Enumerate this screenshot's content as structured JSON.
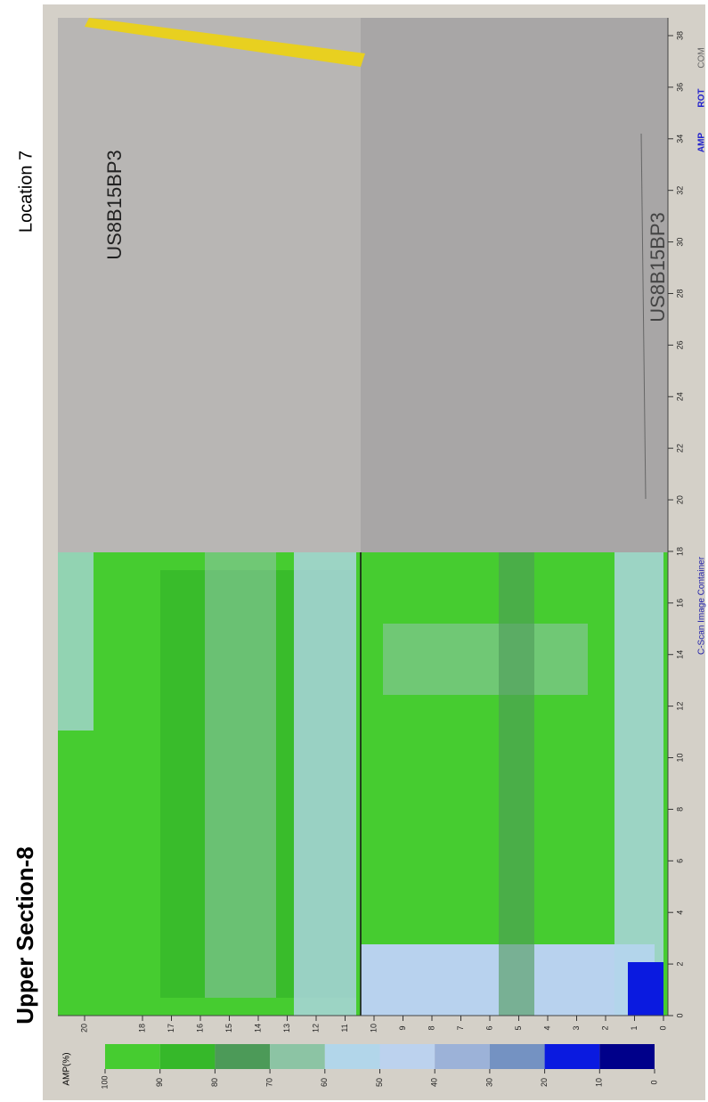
{
  "title": "Upper Section-8",
  "location": "Location 7",
  "panel": {
    "label": "C-Scan Image Container",
    "buttons": [
      "AMP",
      "ROT",
      "COM"
    ]
  },
  "photo_labels": [
    "US8B15BP3",
    "US8B15BP3"
  ],
  "scan_axis": {
    "ticks": [
      0,
      2,
      4,
      6,
      8,
      10,
      12,
      14,
      16,
      18,
      20,
      22,
      24,
      26,
      28,
      30,
      32,
      34,
      36,
      38
    ]
  },
  "index_axis": {
    "ticks": [
      0,
      1,
      2,
      3,
      4,
      5,
      6,
      7,
      8,
      9,
      10,
      11,
      12,
      13,
      14,
      15,
      16,
      17,
      18,
      20
    ]
  },
  "colorbar": {
    "label": "AMP(%)",
    "ticks": [
      100,
      90,
      80,
      70,
      60,
      50,
      40,
      30,
      20,
      10,
      0
    ],
    "colors": [
      "#46cc30",
      "#36b82a",
      "#4c9a58",
      "#8cc4a4",
      "#b2d6ea",
      "#bcd2ee",
      "#9cb2d8",
      "#7492c2",
      "#0a1ae0",
      "#00008a"
    ]
  }
}
